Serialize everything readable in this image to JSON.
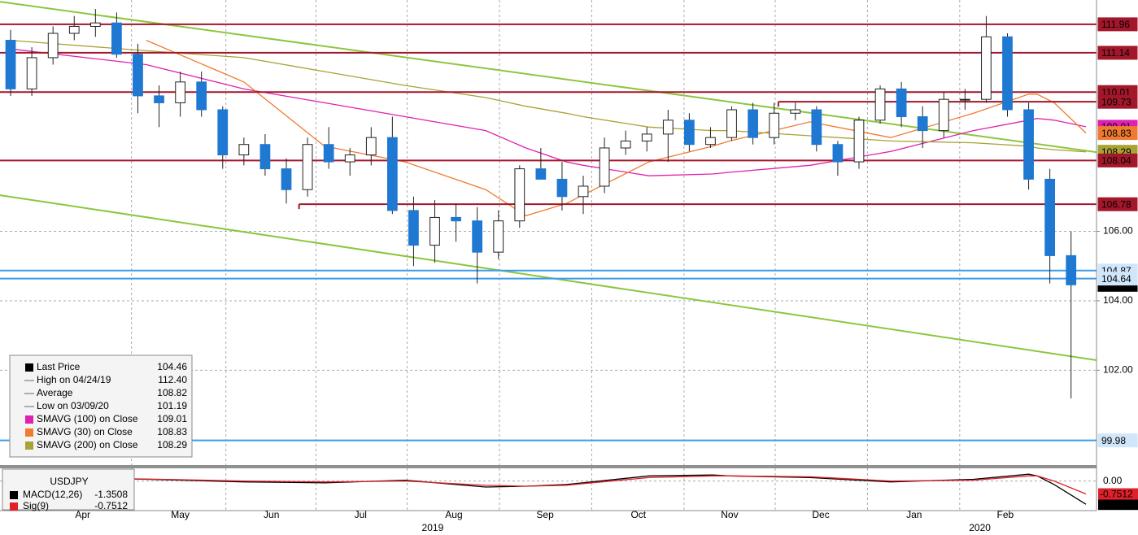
{
  "chart_data": {
    "type": "candlestick",
    "up_color": "#ffffff",
    "down_color": "#1f78d1",
    "open": [
      111.5,
      110.1,
      111.0,
      111.7,
      111.9,
      112.0,
      111.1,
      109.9,
      109.7,
      110.3,
      109.5,
      108.2,
      108.5,
      107.8,
      107.2,
      108.5,
      108.0,
      108.2,
      108.7,
      106.6,
      105.6,
      106.4,
      106.3,
      105.4,
      106.3,
      107.8,
      107.5,
      107.0,
      107.3,
      108.4,
      108.6,
      108.8,
      109.2,
      108.5,
      108.7,
      109.5,
      108.7,
      109.4,
      109.5,
      108.5,
      108.0,
      109.2,
      110.1,
      109.3,
      108.9,
      109.8,
      109.8,
      111.6,
      109.5,
      107.5,
      105.3
    ],
    "high": [
      111.8,
      111.3,
      111.9,
      112.2,
      {
        "value": 112.4,
        "label": "112.40"
      },
      112.3,
      111.4,
      110.2,
      110.6,
      110.6,
      109.6,
      108.7,
      108.8,
      108.1,
      108.7,
      109.0,
      108.4,
      109.0,
      109.3,
      107.0,
      106.9,
      106.8,
      106.7,
      106.6,
      107.9,
      108.4,
      108.0,
      107.6,
      108.7,
      108.9,
      109.0,
      109.5,
      109.4,
      109.0,
      109.6,
      109.7,
      109.7,
      109.7,
      109.6,
      108.6,
      109.3,
      110.2,
      110.3,
      109.6,
      110.0,
      110.1,
      112.2,
      111.7,
      109.7,
      107.8,
      106.0
    ],
    "low": [
      109.9,
      109.9,
      110.8,
      111.5,
      111.6,
      111.0,
      109.4,
      109.0,
      109.3,
      109.3,
      107.8,
      107.9,
      107.6,
      106.8,
      107.0,
      107.8,
      107.6,
      107.9,
      106.5,
      105.0,
      105.1,
      105.7,
      104.5,
      105.2,
      106.1,
      107.5,
      106.6,
      106.5,
      107.1,
      108.2,
      108.3,
      108.0,
      108.3,
      108.4,
      108.6,
      108.5,
      108.5,
      109.2,
      108.3,
      107.6,
      107.8,
      109.1,
      109.0,
      108.4,
      108.7,
      109.5,
      109.7,
      109.3,
      107.2,
      104.5,
      101.19
    ],
    "close": [
      110.1,
      111.0,
      111.7,
      111.9,
      112.0,
      111.1,
      109.9,
      109.7,
      110.3,
      109.5,
      108.2,
      108.5,
      107.8,
      107.2,
      108.5,
      108.0,
      108.2,
      108.7,
      106.6,
      105.6,
      106.4,
      106.3,
      105.4,
      106.3,
      107.8,
      107.5,
      107.0,
      107.3,
      108.4,
      108.6,
      108.8,
      109.2,
      108.5,
      108.7,
      109.5,
      108.7,
      109.4,
      109.5,
      108.5,
      108.0,
      109.2,
      110.1,
      109.3,
      108.9,
      109.8,
      109.8,
      111.6,
      109.5,
      107.5,
      105.3,
      104.46
    ],
    "xlim": [
      -0.5,
      51.2
    ],
    "ylim": [
      99.27,
      112.66
    ],
    "yticks": [
      {
        "value": 106,
        "label": "106.00"
      },
      {
        "value": 104,
        "label": "104.00"
      },
      {
        "value": 102,
        "label": "102.00"
      }
    ],
    "xticks": [
      {
        "value": 3.4,
        "label": "Apr"
      },
      {
        "value": 8.0,
        "label": "May"
      },
      {
        "value": 12.3,
        "label": "Jun"
      },
      {
        "value": 16.5,
        "label": "Jul"
      },
      {
        "value": 20.9,
        "label": "Aug"
      },
      {
        "value": 25.2,
        "label": "Sep"
      },
      {
        "value": 29.6,
        "label": "Oct"
      },
      {
        "value": 33.9,
        "label": "Nov"
      },
      {
        "value": 38.2,
        "label": "Dec"
      },
      {
        "value": 42.6,
        "label": "Jan"
      },
      {
        "value": 46.9,
        "label": "Feb"
      }
    ],
    "years": [
      {
        "value": 19.9,
        "label": "2019"
      },
      {
        "value": 45.7,
        "label": "2020"
      }
    ],
    "grid": true,
    "levels": [
      {
        "value": 111.96,
        "color": "#a3172b"
      },
      {
        "value": 111.14,
        "color": "#a3172b"
      },
      {
        "value": 110.01,
        "color": "#a3172b"
      },
      {
        "value": 109.73,
        "color": "#a3172b",
        "start": 36.2
      },
      {
        "value": 108.04,
        "color": "#a3172b"
      },
      {
        "value": 106.78,
        "color": "#a3172b",
        "start": 13.6
      },
      {
        "value": 104.87,
        "color": "#3d9be9"
      },
      {
        "value": 104.64,
        "color": "#3d9be9"
      },
      {
        "value": 99.98,
        "color": "#3d9be9"
      }
    ],
    "trendlines": [
      {
        "color": "#8cc63f",
        "values": [
          112.61,
          108.28
        ]
      },
      {
        "color": "#8cc63f",
        "values": [
          107.04,
          102.29
        ]
      }
    ],
    "ma_x": [
      0,
      6.4,
      11,
      14.8,
      18.6,
      22.4,
      24.3,
      26.2,
      27,
      30.1,
      33.1,
      33.9,
      37.7,
      41.5,
      45.4,
      48,
      48.4,
      49.2,
      50.7
    ],
    "moving_averages": [
      {
        "color": "#e020b0",
        "legend": 4,
        "values": [
          111.25,
          110.8,
          110.1,
          109.7,
          109.3,
          108.9,
          108.4,
          108.0,
          107.9,
          107.6,
          107.65,
          107.7,
          107.9,
          108.3,
          108.9,
          109.2,
          109.25,
          109.2,
          109.01
        ]
      },
      {
        "color": "#f07a30",
        "legend": 5,
        "values": [
          null,
          111.5,
          110.3,
          108.45,
          108.0,
          107.2,
          106.45,
          106.8,
          107.05,
          108.0,
          108.45,
          108.6,
          109.15,
          108.7,
          109.4,
          109.95,
          109.95,
          109.7,
          108.83
        ]
      },
      {
        "color": "#a9a234",
        "legend": 6,
        "values": [
          111.5,
          111.2,
          111.0,
          110.6,
          110.2,
          109.85,
          109.6,
          109.4,
          109.3,
          109.0,
          108.9,
          108.9,
          108.75,
          108.6,
          108.55,
          108.45,
          108.4,
          108.35,
          108.29
        ]
      }
    ],
    "legend": [
      {
        "label": "Last Price",
        "value": 104.46,
        "color": "#000000"
      },
      {
        "label": "High on 04/24/19",
        "value": {
          "value": 112.4,
          "label": "112.40"
        }
      },
      {
        "label": "Average",
        "value": 108.82
      },
      {
        "label": "Low on 03/09/20",
        "value": 101.19
      },
      {
        "label": "SMAVG (100)  on Close",
        "value": 109.01,
        "color": "#e020b0"
      },
      {
        "label": "SMAVG (30)  on Close",
        "value": 108.83,
        "color": "#f07a30"
      },
      {
        "label": "SMAVG (200)  on Close",
        "value": 108.29,
        "color": "#a9a234"
      }
    ],
    "macd": {
      "title": "USDJPY",
      "ylim": [
        -1.72,
        0.74
      ],
      "yticks": [
        {
          "value": 0,
          "label": "0.00"
        }
      ],
      "series": [
        {
          "name": "MACD(12,26)",
          "color": "#000000",
          "last": -1.3508,
          "values": [
            0.25,
            0.1,
            -0.05,
            -0.1,
            0.05,
            -0.35,
            -0.3,
            -0.2,
            -0.1,
            0.3,
            0.35,
            0.3,
            0.2,
            -0.05,
            0.1,
            0.4,
            0.3,
            -0.2,
            -1.3508
          ]
        },
        {
          "name": "Sig(9)",
          "color": "#e0202a",
          "last": -0.7512,
          "values": [
            0.2,
            0.12,
            0.0,
            -0.05,
            0.0,
            -0.25,
            -0.3,
            -0.25,
            -0.15,
            0.2,
            0.3,
            0.3,
            0.25,
            0.0,
            0.05,
            0.3,
            0.3,
            0.0,
            -0.7512
          ]
        }
      ]
    }
  }
}
